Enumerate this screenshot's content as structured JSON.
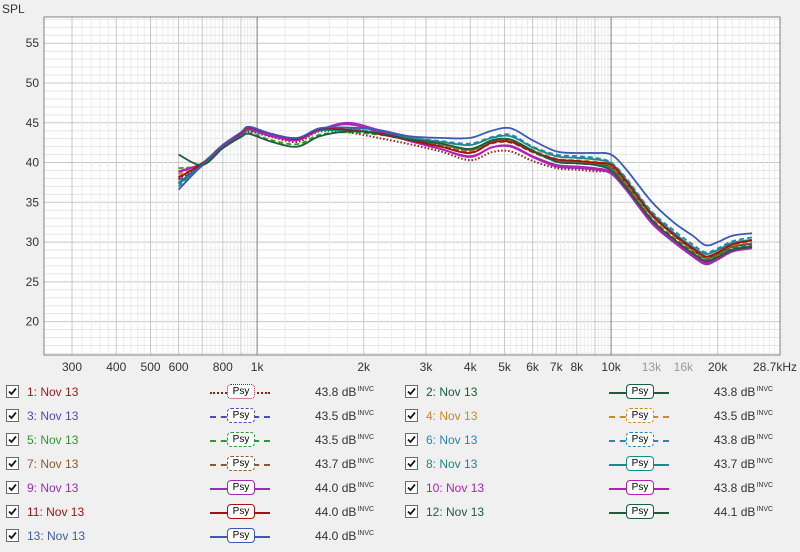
{
  "chart_data": {
    "type": "line",
    "ylabel": "SPL",
    "xlabel": "",
    "title": "",
    "xscale": "log",
    "xlim": [
      250,
      30000
    ],
    "ylim": [
      15.8,
      58.3
    ],
    "grid": true,
    "yticks": [
      20,
      25,
      30,
      35,
      40,
      45,
      50,
      55
    ],
    "xticks": [
      {
        "value": 300,
        "label": "300"
      },
      {
        "value": 400,
        "label": "400"
      },
      {
        "value": 500,
        "label": "500"
      },
      {
        "value": 600,
        "label": "600"
      },
      {
        "value": 800,
        "label": "800"
      },
      {
        "value": 1000,
        "label": "1k"
      },
      {
        "value": 2000,
        "label": "2k"
      },
      {
        "value": 3000,
        "label": "3k"
      },
      {
        "value": 4000,
        "label": "4k"
      },
      {
        "value": 5000,
        "label": "5k"
      },
      {
        "value": 6000,
        "label": "6k"
      },
      {
        "value": 7000,
        "label": "7k"
      },
      {
        "value": 8000,
        "label": "8k"
      },
      {
        "value": 10000,
        "label": "10k"
      },
      {
        "value": 13000,
        "label": "13k"
      },
      {
        "value": 16000,
        "label": "16k"
      },
      {
        "value": 20000,
        "label": "20k"
      },
      {
        "value": 28700,
        "label": "28.7kHz"
      }
    ],
    "x": [
      600,
      700,
      800,
      900,
      950,
      1100,
      1300,
      1500,
      1800,
      2200,
      2700,
      3300,
      4000,
      4600,
      5200,
      6000,
      7000,
      8000,
      9000,
      10000,
      11000,
      13000,
      15000,
      17000,
      18500,
      20000,
      22000,
      25000
    ],
    "series": [
      {
        "name": "1: Nov 13",
        "color": "#9b1b1b",
        "dash": "dotted",
        "values": [
          38.0,
          39.7,
          41.9,
          43.4,
          43.9,
          43.2,
          42.6,
          43.9,
          43.8,
          43.1,
          42.3,
          41.4,
          40.3,
          41.3,
          41.4,
          40.2,
          39.3,
          39.1,
          38.9,
          38.7,
          36.8,
          32.7,
          30.2,
          28.2,
          27.3,
          27.8,
          28.8,
          29.3
        ]
      },
      {
        "name": "2: Nov 13",
        "color": "#1c5d3c",
        "dash": "solid",
        "values": [
          37.4,
          39.8,
          42.2,
          43.7,
          44.4,
          43.4,
          42.9,
          44.1,
          44.1,
          43.7,
          42.9,
          42.3,
          41.6,
          42.6,
          42.8,
          41.4,
          40.3,
          40.1,
          39.9,
          39.4,
          37.4,
          33.4,
          30.9,
          29.0,
          28.0,
          28.5,
          29.4,
          29.8
        ]
      },
      {
        "name": "3: Nov 13",
        "color": "#4a4ac8",
        "dash": "dashed",
        "values": [
          37.8,
          39.6,
          41.9,
          43.4,
          44.0,
          43.3,
          42.9,
          44.1,
          44.3,
          43.6,
          42.8,
          42.1,
          41.5,
          42.6,
          42.6,
          41.3,
          40.2,
          39.9,
          39.7,
          39.1,
          37.1,
          32.9,
          30.4,
          28.6,
          27.7,
          28.2,
          29.2,
          29.6
        ]
      },
      {
        "name": "4: Nov 13",
        "color": "#d1881e",
        "dash": "dashed",
        "values": [
          38.5,
          39.9,
          42.1,
          43.5,
          44.2,
          43.3,
          42.8,
          44.1,
          44.2,
          43.7,
          42.9,
          42.2,
          41.4,
          42.5,
          42.7,
          41.6,
          40.5,
          40.3,
          40.1,
          39.6,
          37.5,
          33.3,
          30.9,
          29.1,
          28.1,
          28.7,
          29.6,
          30.0
        ]
      },
      {
        "name": "5: Nov 13",
        "color": "#2c9a2c",
        "dash": "dashed",
        "values": [
          39.3,
          39.7,
          41.8,
          43.3,
          43.7,
          42.8,
          42.3,
          43.5,
          43.8,
          43.5,
          42.9,
          42.3,
          41.7,
          42.7,
          42.9,
          41.5,
          40.2,
          40.0,
          39.8,
          39.1,
          37.1,
          32.9,
          30.4,
          28.6,
          27.7,
          28.2,
          29.1,
          29.5
        ]
      },
      {
        "name": "6: Nov 13",
        "color": "#2d86b2",
        "dash": "dashed",
        "values": [
          37.0,
          39.6,
          41.9,
          43.4,
          44.1,
          43.3,
          42.9,
          44.1,
          44.2,
          43.8,
          43.1,
          42.7,
          42.4,
          43.2,
          43.5,
          42.0,
          41.0,
          40.8,
          40.6,
          40.0,
          38.1,
          33.9,
          31.5,
          29.7,
          28.7,
          29.2,
          30.1,
          30.6
        ]
      },
      {
        "name": "7: Nov 13",
        "color": "#8c5a2a",
        "dash": "dashed",
        "values": [
          38.2,
          39.8,
          42.0,
          43.5,
          44.2,
          43.4,
          42.9,
          44.1,
          44.1,
          43.6,
          42.8,
          42.1,
          41.3,
          42.4,
          42.5,
          41.3,
          40.2,
          40.0,
          39.8,
          39.3,
          37.2,
          33.0,
          30.6,
          28.8,
          27.9,
          28.4,
          29.4,
          29.8
        ]
      },
      {
        "name": "8: Nov 13",
        "color": "#1d8a8a",
        "dash": "solid",
        "values": [
          37.3,
          39.6,
          42.0,
          43.5,
          44.3,
          43.4,
          42.9,
          44.0,
          44.0,
          43.8,
          43.1,
          42.6,
          42.2,
          43.1,
          43.3,
          41.9,
          40.8,
          40.6,
          40.4,
          39.9,
          37.9,
          33.7,
          31.2,
          29.4,
          28.5,
          29.0,
          29.9,
          30.3
        ]
      },
      {
        "name": "9: Nov 13",
        "color": "#9a2eb5",
        "dash": "solid",
        "values": [
          38.8,
          39.9,
          42.1,
          43.6,
          44.3,
          43.4,
          42.9,
          44.1,
          45.0,
          44.1,
          42.8,
          41.7,
          40.7,
          41.9,
          42.0,
          40.7,
          39.5,
          39.3,
          39.1,
          38.6,
          36.6,
          32.4,
          30.0,
          28.2,
          27.2,
          27.8,
          28.8,
          29.2
        ]
      },
      {
        "name": "10: Nov 13",
        "color": "#b51fb5",
        "dash": "solid",
        "values": [
          38.9,
          39.9,
          42.0,
          43.5,
          44.2,
          43.3,
          42.8,
          44.1,
          44.8,
          43.9,
          42.7,
          41.7,
          40.8,
          41.9,
          42.1,
          40.8,
          39.7,
          39.5,
          39.3,
          38.8,
          36.8,
          32.6,
          30.2,
          28.4,
          27.4,
          28.0,
          29.0,
          29.4
        ]
      },
      {
        "name": "11: Nov 13",
        "color": "#a81010",
        "dash": "solid",
        "values": [
          38.1,
          39.9,
          42.2,
          43.7,
          44.4,
          43.6,
          43.0,
          44.2,
          44.1,
          43.6,
          42.8,
          42.0,
          41.2,
          42.5,
          42.6,
          41.4,
          40.4,
          40.2,
          40.0,
          39.7,
          37.7,
          33.5,
          31.0,
          29.2,
          28.2,
          28.7,
          29.7,
          30.2
        ]
      },
      {
        "name": "12: Nov 13",
        "color": "#1c5d3c",
        "dash": "solid",
        "values": [
          41.0,
          39.7,
          41.8,
          43.2,
          43.6,
          42.6,
          42.0,
          43.3,
          43.9,
          43.7,
          42.9,
          42.4,
          41.7,
          42.8,
          42.9,
          41.5,
          40.1,
          39.9,
          39.7,
          39.0,
          36.9,
          32.8,
          30.4,
          28.6,
          27.6,
          28.1,
          29.0,
          29.4
        ]
      },
      {
        "name": "13: Nov 13",
        "color": "#3a5ab6",
        "dash": "solid",
        "values": [
          36.6,
          39.7,
          42.2,
          43.8,
          44.5,
          43.6,
          43.1,
          44.3,
          44.4,
          44.1,
          43.3,
          43.1,
          43.1,
          44.0,
          44.3,
          42.8,
          41.4,
          41.2,
          41.2,
          41.0,
          39.2,
          35.1,
          32.5,
          30.8,
          29.6,
          30.0,
          30.8,
          31.1
        ]
      }
    ]
  },
  "legend": [
    {
      "label": "1: Nov 13",
      "color": "#9b1b1b",
      "dash": "dotted",
      "psy": "Psy",
      "db": "43.8 dB",
      "sup": "INVC"
    },
    {
      "label": "2: Nov 13",
      "color": "#1c5d3c",
      "dash": "solid",
      "psy": "Psy",
      "db": "43.8 dB",
      "sup": "INVC"
    },
    {
      "label": "3: Nov 13",
      "color": "#4a4ac8",
      "dash": "dashed",
      "psy": "Psy",
      "db": "43.5 dB",
      "sup": "INVC"
    },
    {
      "label": "4: Nov 13",
      "color": "#d1881e",
      "dash": "dashed",
      "psy": "Psy",
      "db": "43.5 dB",
      "sup": "INVC"
    },
    {
      "label": "5: Nov 13",
      "color": "#2c9a2c",
      "dash": "dashed",
      "psy": "Psy",
      "db": "43.5 dB",
      "sup": "INVC"
    },
    {
      "label": "6: Nov 13",
      "color": "#2d86b2",
      "dash": "dashed",
      "psy": "Psy",
      "db": "43.8 dB",
      "sup": "INVC"
    },
    {
      "label": "7: Nov 13",
      "color": "#8c5a2a",
      "dash": "dashed",
      "psy": "Psy",
      "db": "43.7 dB",
      "sup": "INVC"
    },
    {
      "label": "8: Nov 13",
      "color": "#1d8a8a",
      "dash": "solid",
      "psy": "Psy",
      "db": "43.7 dB",
      "sup": "INVC"
    },
    {
      "label": "9: Nov 13",
      "color": "#9a2eb5",
      "dash": "solid",
      "psy": "Psy",
      "db": "44.0 dB",
      "sup": "INVC"
    },
    {
      "label": "10: Nov 13",
      "color": "#b51fb5",
      "dash": "solid",
      "psy": "Psy",
      "db": "43.8 dB",
      "sup": "INVC"
    },
    {
      "label": "11: Nov 13",
      "color": "#a81010",
      "dash": "solid",
      "psy": "Psy",
      "db": "44.0 dB",
      "sup": "INVC"
    },
    {
      "label": "12: Nov 13",
      "color": "#1c5d3c",
      "dash": "solid",
      "psy": "Psy",
      "db": "44.1 dB",
      "sup": "INVC"
    },
    {
      "label": "13: Nov 13",
      "color": "#3a5ab6",
      "dash": "solid",
      "psy": "Psy",
      "db": "44.0 dB",
      "sup": "INVC"
    }
  ]
}
